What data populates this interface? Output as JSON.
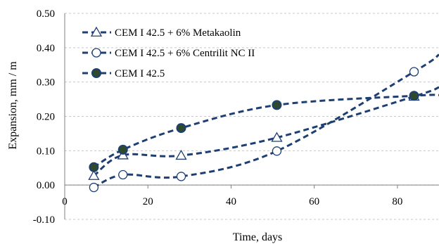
{
  "chart_data": {
    "type": "line",
    "xlabel": "Time, days",
    "ylabel": "Expansion,  mm / m",
    "xlim": [
      0,
      90
    ],
    "ylim": [
      -0.1,
      0.5
    ],
    "x_ticks": [
      "0",
      "20",
      "40",
      "60",
      "80"
    ],
    "y_ticks": [
      "0.50",
      "0.40",
      "0.30",
      "0.20",
      "0.10",
      "0.00",
      "-0.10"
    ],
    "grid": "horizontal",
    "legend_position": "top-left",
    "line_color": "#1f3f73",
    "series": [
      {
        "name": "CEM I 42.5 + 6% Metakaolin",
        "marker": "triangle-open",
        "x": [
          7,
          14,
          28,
          51,
          84
        ],
        "y": [
          0.027,
          0.087,
          0.086,
          0.138,
          0.258
        ],
        "trend_end": [
          90,
          0.285
        ]
      },
      {
        "name": "CEM I 42.5 + 6% Centrilit NC II",
        "marker": "circle-open",
        "x": [
          7,
          14,
          28,
          51,
          84
        ],
        "y": [
          -0.007,
          0.03,
          0.025,
          0.099,
          0.33
        ],
        "trend_end": [
          90,
          0.38
        ]
      },
      {
        "name": "CEM I 42.5",
        "marker": "circle-filled",
        "x": [
          7,
          14,
          28,
          51,
          84
        ],
        "y": [
          0.052,
          0.103,
          0.166,
          0.233,
          0.26
        ],
        "trend_end": [
          90,
          0.262
        ]
      }
    ]
  }
}
